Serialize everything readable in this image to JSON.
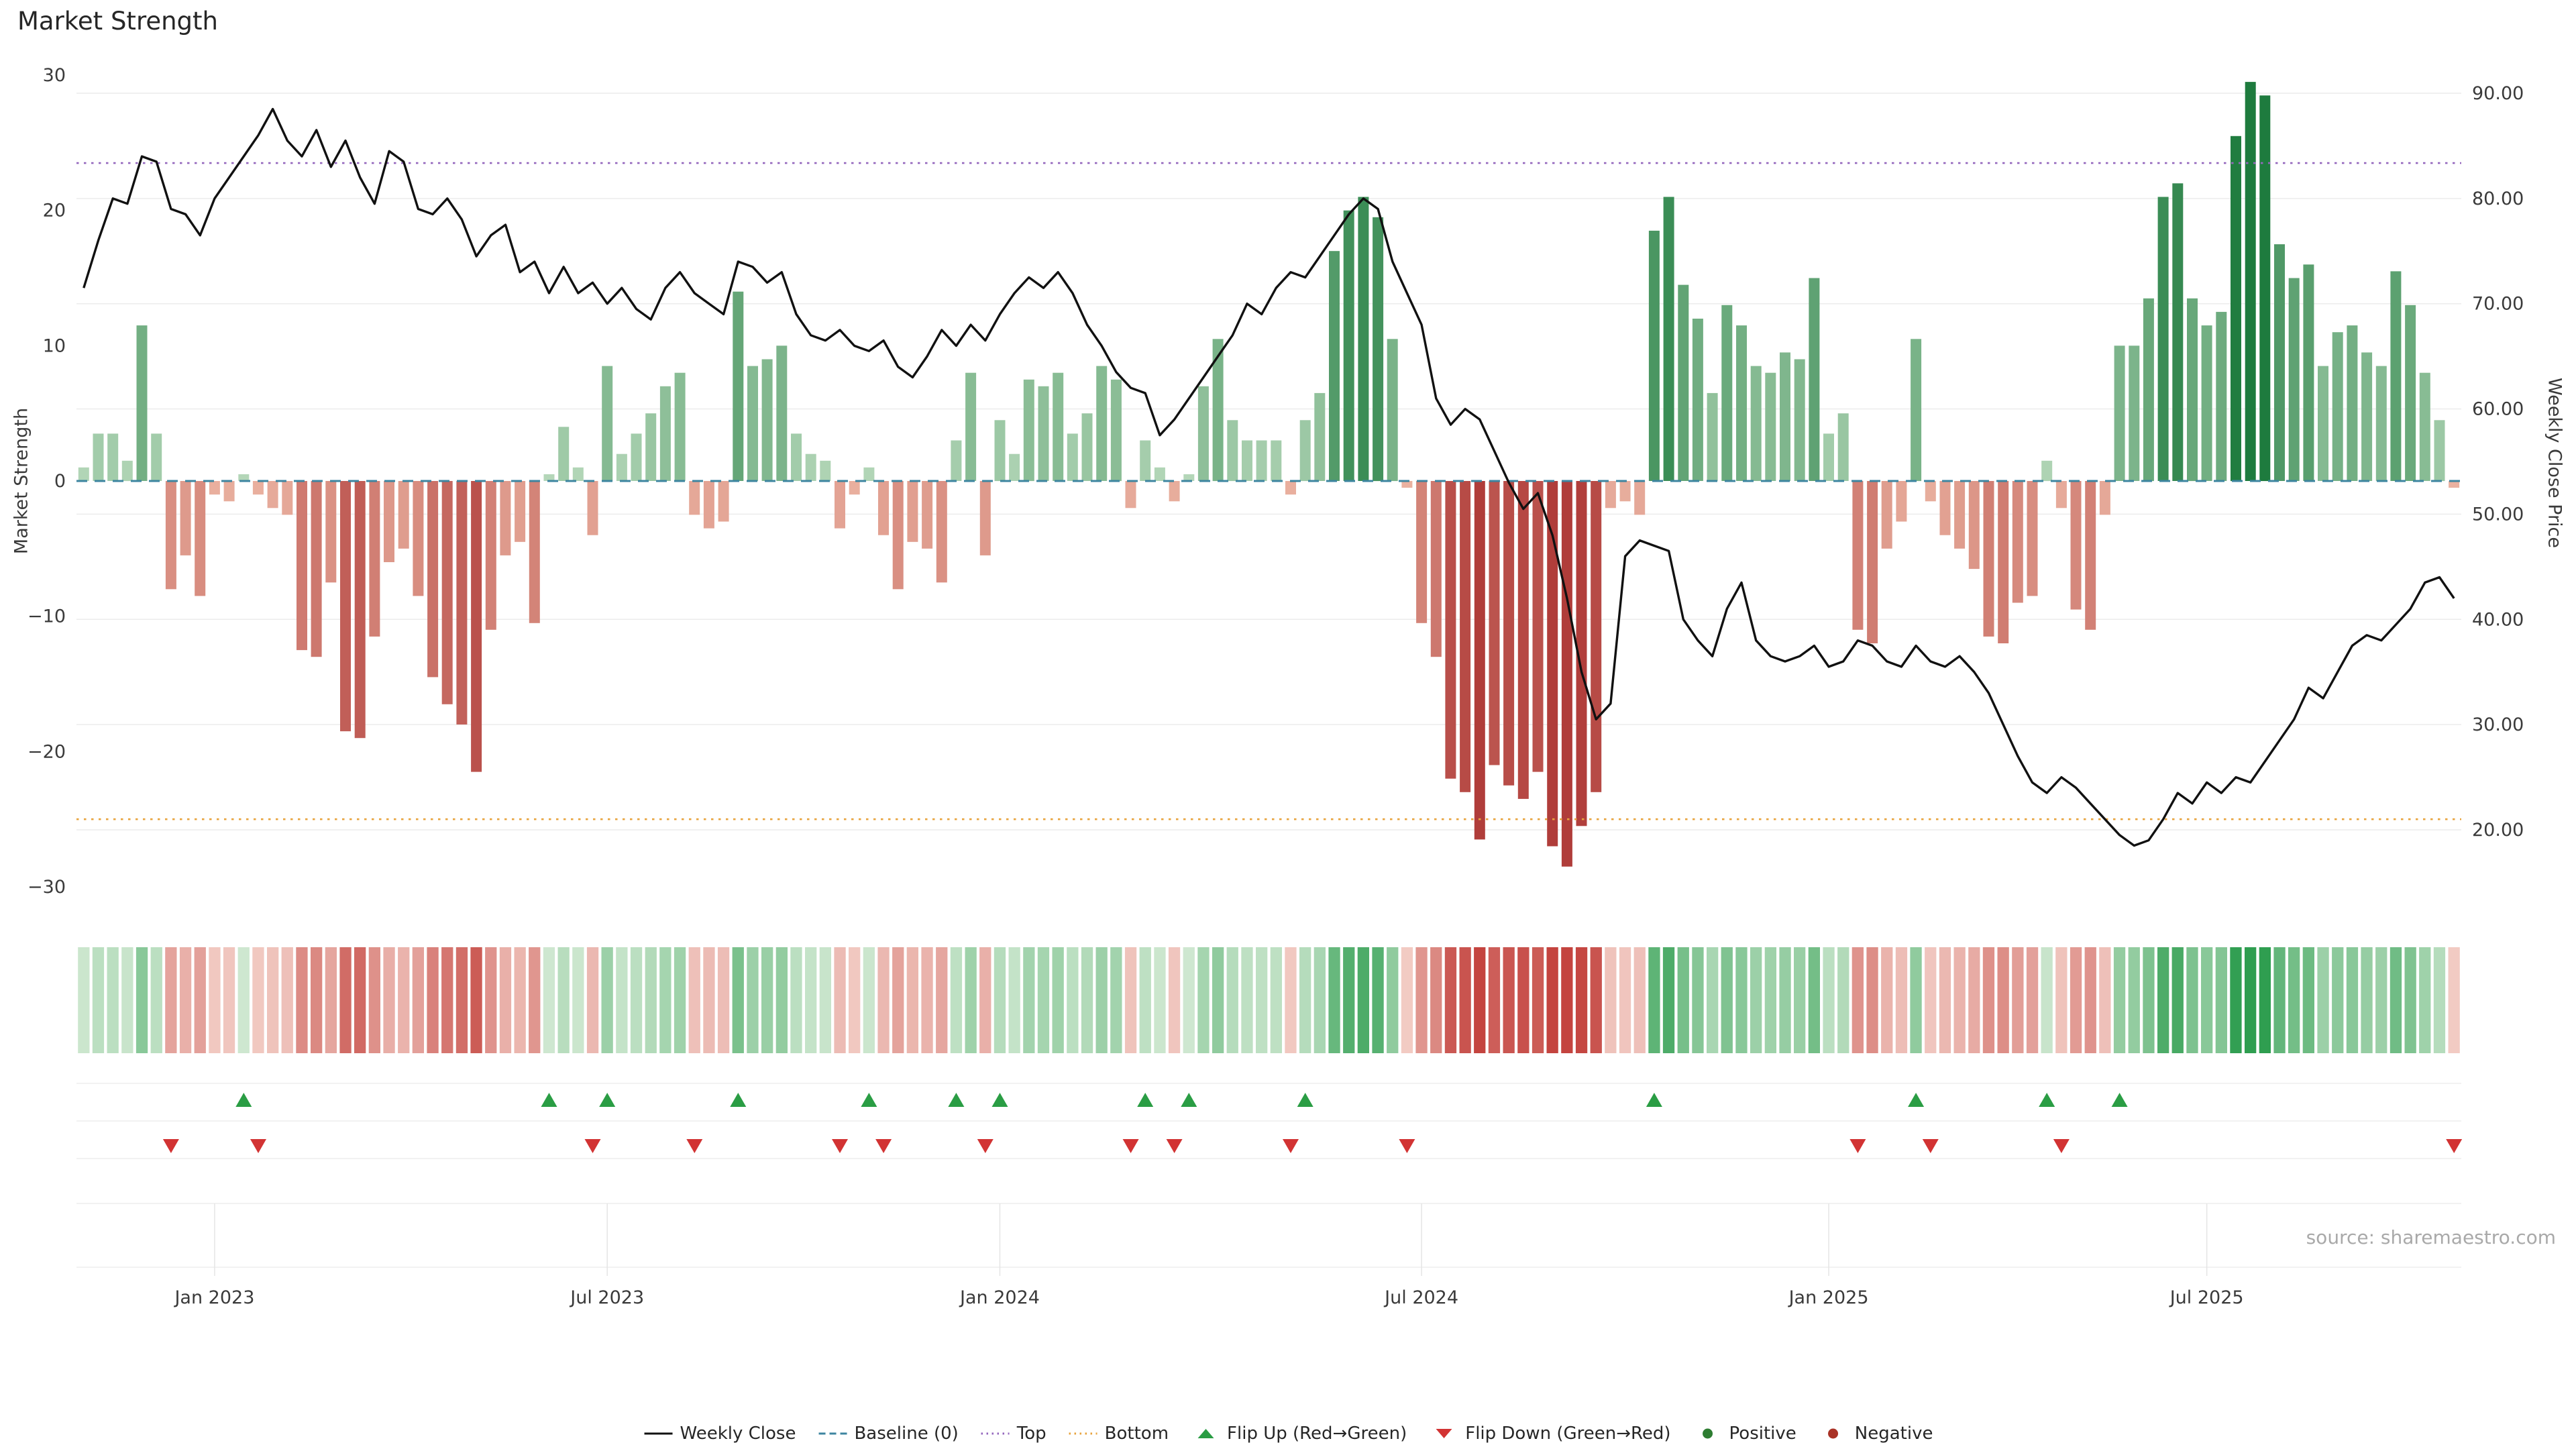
{
  "title": "Market Strength",
  "source": "source: sharemaestro.com",
  "colors": {
    "positive_dark": "#1e7b3e",
    "positive_light": "#d4ead2",
    "negative_dark": "#b03d3a",
    "negative_light": "#f6cab6",
    "line": "#111111",
    "baseline": "#3d85a0",
    "top": "#9467bd",
    "bottom": "#e8a33d",
    "flip_up": "#2a9d44",
    "flip_down": "#d23333",
    "grid": "#ececec"
  },
  "legend": {
    "items": [
      {
        "label": "Weekly Close",
        "swatch": "line",
        "color": "#111111"
      },
      {
        "label": "Baseline (0)",
        "swatch": "dash",
        "color": "#3d85a0"
      },
      {
        "label": "Top",
        "swatch": "dot-line",
        "color": "#9467bd"
      },
      {
        "label": "Bottom",
        "swatch": "dot-line",
        "color": "#e8a33d"
      },
      {
        "label": "Flip Up (Red→Green)",
        "swatch": "triangle-up",
        "color": "#2a9d44"
      },
      {
        "label": "Flip Down (Green→Red)",
        "swatch": "triangle-down",
        "color": "#d23333"
      },
      {
        "label": "Positive",
        "swatch": "dot",
        "color": "#2e7d32"
      },
      {
        "label": "Negative",
        "swatch": "dot",
        "color": "#a93226"
      }
    ]
  },
  "chart_data": {
    "type": "combo",
    "x_unit": "week",
    "grid": "horizontal",
    "left_axis": {
      "label": "Market Strength",
      "min": -30,
      "max": 30,
      "ticks": [
        30,
        20,
        10,
        0,
        -10,
        -20,
        -30
      ]
    },
    "right_axis": {
      "label": "Weekly Close Price",
      "min": 20,
      "max": 90,
      "ticks": [
        "90.00",
        "80.00",
        "70.00",
        "60.00",
        "50.00",
        "40.00",
        "30.00",
        "20.00"
      ]
    },
    "x_ticks": [
      {
        "index": 9,
        "label": "Jan 2023"
      },
      {
        "index": 36,
        "label": "Jul 2023"
      },
      {
        "index": 63,
        "label": "Jan 2024"
      },
      {
        "index": 92,
        "label": "Jul 2024"
      },
      {
        "index": 120,
        "label": "Jan 2025"
      },
      {
        "index": 146,
        "label": "Jul 2025"
      }
    ],
    "reference_lines": [
      {
        "name": "Baseline (0)",
        "value": 0,
        "axis": "left",
        "style": "dashed",
        "color": "#3d85a0"
      },
      {
        "name": "Top",
        "value": 23.5,
        "axis": "left",
        "style": "dotted",
        "color": "#9467bd"
      },
      {
        "name": "Bottom",
        "value": -25,
        "axis": "left",
        "style": "dotted",
        "color": "#e8a33d"
      }
    ],
    "series": [
      {
        "name": "Market Strength",
        "type": "bar",
        "axis": "left",
        "values": [
          1,
          3.5,
          3.5,
          1.5,
          11.5,
          3.5,
          -8,
          -5.5,
          -8.5,
          -1,
          -1.5,
          0.5,
          -1,
          -2,
          -2.5,
          -12.5,
          -13,
          -7.5,
          -18.5,
          -19,
          -11.5,
          -6,
          -5,
          -8.5,
          -14.5,
          -16.5,
          -18,
          -21.5,
          -11,
          -5.5,
          -4.5,
          -10.5,
          0.5,
          4,
          1,
          -4,
          8.5,
          2,
          3.5,
          5,
          7,
          8,
          -2.5,
          -3.5,
          -3,
          14,
          8.5,
          9,
          10,
          3.5,
          2,
          1.5,
          -3.5,
          -1,
          1,
          -4,
          -8,
          -4.5,
          -5,
          -7.5,
          3,
          8,
          -5.5,
          4.5,
          2,
          7.5,
          7,
          8,
          3.5,
          5,
          8.5,
          7.5,
          -2,
          3,
          1,
          -1.5,
          0.5,
          7,
          10.5,
          4.5,
          3,
          3,
          3,
          -1,
          4.5,
          6.5,
          17,
          20,
          21,
          19.5,
          10.5,
          -0.5,
          -10.5,
          -13,
          -22,
          -23,
          -26.5,
          -21,
          -22.5,
          -23.5,
          -21.5,
          -27,
          -28.5,
          -25.5,
          -23,
          -2,
          -1.5,
          -2.5,
          18.5,
          21,
          14.5,
          12,
          6.5,
          13,
          11.5,
          8.5,
          8,
          9.5,
          9,
          15,
          3.5,
          5,
          -11,
          -12,
          -5,
          -3,
          10.5,
          -1.5,
          -4,
          -5,
          -6.5,
          -11.5,
          -12,
          -9,
          -8.5,
          1.5,
          -2,
          -9.5,
          -11,
          -2.5,
          10,
          10,
          13.5,
          21,
          22,
          13.5,
          11.5,
          12.5,
          25.5,
          29.5,
          28.5,
          17.5,
          15,
          16,
          8.5,
          11,
          11.5,
          9.5,
          8.5,
          15.5,
          13,
          8,
          4.5,
          -0.5
        ]
      },
      {
        "name": "Weekly Close",
        "type": "line",
        "axis": "right",
        "values": [
          71.5,
          76,
          80,
          79.5,
          84,
          83.5,
          79,
          78.5,
          76.5,
          80,
          82,
          84,
          86,
          88.5,
          85.5,
          84,
          86.5,
          83,
          85.5,
          82,
          79.5,
          84.5,
          83.5,
          79,
          78.5,
          80,
          78,
          74.5,
          76.5,
          77.5,
          73,
          74,
          71,
          73.5,
          71,
          72,
          70,
          71.5,
          69.5,
          68.5,
          71.5,
          73,
          71,
          70,
          69,
          74,
          73.5,
          72,
          73,
          69,
          67,
          66.5,
          67.5,
          66,
          65.5,
          66.5,
          64,
          63,
          65,
          67.5,
          66,
          68,
          66.5,
          69,
          71,
          72.5,
          71.5,
          73,
          71,
          68,
          66,
          63.5,
          62,
          61.5,
          57.5,
          59,
          61,
          63,
          65,
          67,
          70,
          69,
          71.5,
          73,
          72.5,
          74.5,
          76.5,
          78.5,
          80,
          79,
          74,
          71,
          68,
          61,
          58.5,
          60,
          59,
          56,
          53,
          50.5,
          52,
          48,
          42,
          35,
          30.5,
          32,
          46,
          47.5,
          47,
          46.5,
          40,
          38,
          36.5,
          41,
          43.5,
          38,
          36.5,
          36,
          36.5,
          37.5,
          35.5,
          36,
          38,
          37.5,
          36,
          35.5,
          37.5,
          36,
          35.5,
          36.5,
          35,
          33,
          30,
          27,
          24.5,
          23.5,
          25,
          24,
          22.5,
          21,
          19.5,
          18.5,
          19,
          21,
          23.5,
          22.5,
          24.5,
          23.5,
          25,
          24.5,
          26.5,
          28.5,
          30.5,
          33.5,
          32.5,
          35,
          37.5,
          38.5,
          38,
          39.5,
          41,
          43.5,
          44,
          42
        ]
      }
    ],
    "heatmap": {
      "note": "strip below main chart; cell color = sign and magnitude of Market Strength bar values"
    },
    "flip_up_indices": [
      11,
      32,
      36,
      45,
      54,
      60,
      63,
      73,
      76,
      84,
      108,
      126,
      135,
      140
    ],
    "flip_down_indices": [
      6,
      12,
      35,
      42,
      52,
      55,
      62,
      72,
      75,
      83,
      91,
      122,
      127,
      136,
      163
    ]
  }
}
